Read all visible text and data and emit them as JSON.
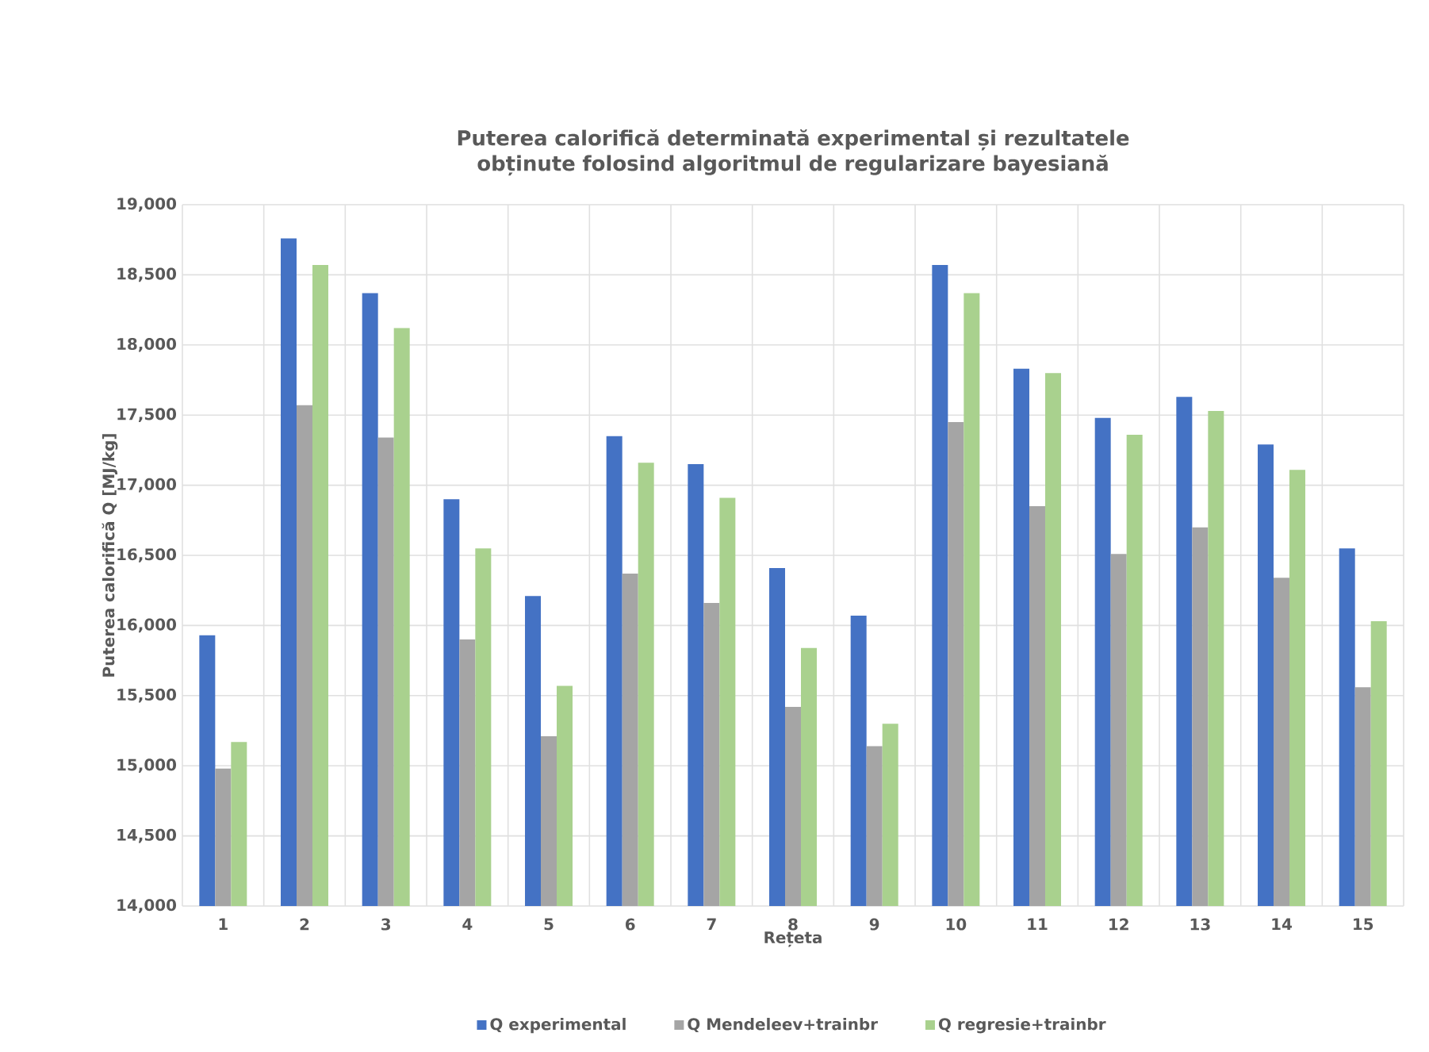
{
  "chart_data": {
    "type": "bar",
    "title": "Puterea calorifică determinată experimental și rezultatele obținute folosind algoritmul de regularizare bayesiană",
    "xlabel": "Rețeta",
    "ylabel": "Puterea calorifică Q [MJ/kg]",
    "categories": [
      "1",
      "2",
      "3",
      "4",
      "5",
      "6",
      "7",
      "8",
      "9",
      "10",
      "11",
      "12",
      "13",
      "14",
      "15"
    ],
    "series": [
      {
        "name": "Q experimental",
        "color": "#4472c4",
        "values": [
          15930,
          18760,
          18370,
          16900,
          16210,
          17350,
          17150,
          16410,
          16070,
          18570,
          17830,
          17480,
          17630,
          17290,
          16550
        ]
      },
      {
        "name": "Q Mendeleev+trainbr",
        "color": "#a5a5a5",
        "values": [
          14980,
          17570,
          17340,
          15900,
          15210,
          16370,
          16160,
          15420,
          15140,
          17450,
          16850,
          16510,
          16700,
          16340,
          15560
        ]
      },
      {
        "name": "Q regresie+trainbr",
        "color": "#a9d18e",
        "values": [
          15170,
          18570,
          18120,
          16550,
          15570,
          17160,
          16910,
          15840,
          15300,
          18370,
          17800,
          17360,
          17530,
          17110,
          16030
        ]
      }
    ],
    "ylim": [
      14000,
      19000
    ],
    "yticks": [
      {
        "value": 14000,
        "label": "14,000"
      },
      {
        "value": 14500,
        "label": "14,500"
      },
      {
        "value": 15000,
        "label": "15,000"
      },
      {
        "value": 15500,
        "label": "15,500"
      },
      {
        "value": 16000,
        "label": "16,000"
      },
      {
        "value": 16500,
        "label": "16,500"
      },
      {
        "value": 17000,
        "label": "17,000"
      },
      {
        "value": 17500,
        "label": "17,500"
      },
      {
        "value": 18000,
        "label": "18,000"
      },
      {
        "value": 18500,
        "label": "18,500"
      },
      {
        "value": 19000,
        "label": "19,000"
      }
    ],
    "grid": true,
    "legend": "bottom"
  }
}
